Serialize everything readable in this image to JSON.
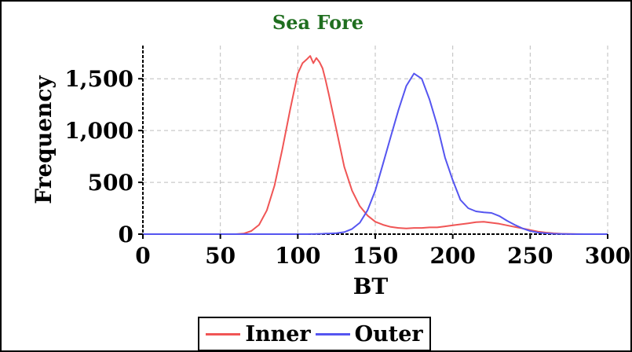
{
  "colors": {
    "inner": "#f05555",
    "outer": "#5555f0",
    "title": "#1f6e1f",
    "grid": "#bdbdbd"
  },
  "chart_data": {
    "type": "line",
    "title": "Sea Fore",
    "xlabel": "BT",
    "ylabel": "Frequency",
    "xlim": [
      0,
      300
    ],
    "ylim": [
      0,
      1820
    ],
    "xticks": [
      0,
      50,
      100,
      150,
      200,
      250,
      300
    ],
    "xtick_labels": [
      "0",
      "50",
      "100",
      "150",
      "200",
      "250",
      "300"
    ],
    "yticks": [
      0,
      500,
      1000,
      1500
    ],
    "ytick_labels": [
      "0",
      "500",
      "1,000",
      "1,500"
    ],
    "grid": true,
    "legend_position": "bottom-center",
    "x": [
      0,
      10,
      20,
      30,
      40,
      50,
      60,
      65,
      70,
      75,
      80,
      85,
      90,
      95,
      100,
      103,
      106,
      108,
      110,
      112,
      114,
      116,
      118,
      120,
      125,
      130,
      135,
      140,
      145,
      150,
      155,
      160,
      165,
      170,
      175,
      180,
      185,
      190,
      195,
      200,
      205,
      210,
      215,
      220,
      225,
      230,
      235,
      240,
      245,
      250,
      255,
      260,
      265,
      270,
      275,
      280,
      285,
      290,
      295,
      300
    ],
    "series": [
      {
        "name": "Inner",
        "color": "#f05555",
        "values": [
          0,
          0,
          0,
          0,
          0,
          0,
          0,
          5,
          30,
          90,
          230,
          470,
          820,
          1200,
          1550,
          1650,
          1690,
          1720,
          1650,
          1700,
          1660,
          1600,
          1480,
          1350,
          1000,
          650,
          420,
          270,
          180,
          120,
          90,
          70,
          60,
          55,
          60,
          60,
          65,
          65,
          75,
          85,
          95,
          105,
          115,
          120,
          110,
          100,
          85,
          70,
          55,
          40,
          25,
          15,
          8,
          4,
          2,
          1,
          0,
          0,
          0,
          0
        ]
      },
      {
        "name": "Outer",
        "color": "#5555f0",
        "values": [
          0,
          0,
          0,
          0,
          0,
          0,
          0,
          0,
          0,
          0,
          0,
          0,
          0,
          0,
          0,
          0,
          0,
          1,
          1,
          2,
          3,
          4,
          5,
          5,
          10,
          20,
          50,
          110,
          230,
          420,
          680,
          940,
          1200,
          1430,
          1550,
          1500,
          1300,
          1050,
          740,
          520,
          330,
          250,
          220,
          210,
          205,
          175,
          130,
          90,
          55,
          30,
          15,
          8,
          4,
          2,
          1,
          0,
          0,
          0,
          0,
          0
        ]
      }
    ]
  }
}
